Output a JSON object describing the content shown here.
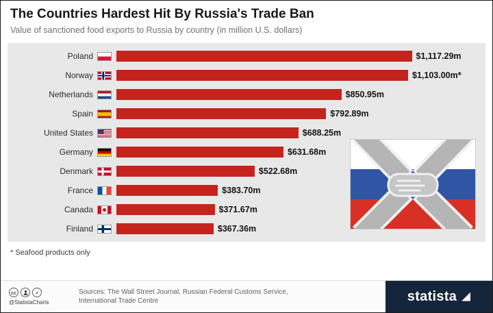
{
  "chart_data": {
    "type": "bar",
    "orientation": "horizontal",
    "title": "The Countries Hardest Hit By Russia's Trade Ban",
    "subtitle": "Value of sanctioned food exports to Russia by country (in million U.S. dollars)",
    "unit": "million U.S. dollars",
    "xlim": [
      0,
      1380
    ],
    "grid": false,
    "legend": "none",
    "categories": [
      "Poland",
      "Norway",
      "Netherlands",
      "Spain",
      "United States",
      "Germany",
      "Denmark",
      "France",
      "Canada",
      "Finland"
    ],
    "values": [
      1117.29,
      1103.0,
      850.95,
      792.89,
      688.25,
      631.68,
      522.68,
      383.7,
      371.67,
      367.36
    ],
    "value_labels": [
      "$1,117.29m",
      "$1,103.00m*",
      "$850.95m",
      "$792.89m",
      "$688.25m",
      "$631.68m",
      "$522.68m",
      "$383.70m",
      "$371.67m",
      "$367.36m"
    ],
    "flags": [
      "poland",
      "norway",
      "netherlands",
      "spain",
      "united-states",
      "germany",
      "denmark",
      "france",
      "canada",
      "finland"
    ]
  },
  "footnote": "* Seafood products only",
  "graphic": "handshake-over-russian-flag",
  "footer": {
    "credit": "@StatistaCharts",
    "icons": {
      "cc_glyph": "cc",
      "by_glyph": "person-silhouette",
      "nd_glyph": "="
    },
    "sources_line1": "Sources: The Wall Street Journal, Russian Federal Customs Service,",
    "sources_line2": "International Trade Centre",
    "brand": "statista"
  },
  "colors": {
    "bar": "#c5241c",
    "chart_bg": "#e8e8e8",
    "footer_navy": "#15263c",
    "russia_flag_blue": "#2f55a4",
    "russia_flag_red": "#d93026"
  }
}
